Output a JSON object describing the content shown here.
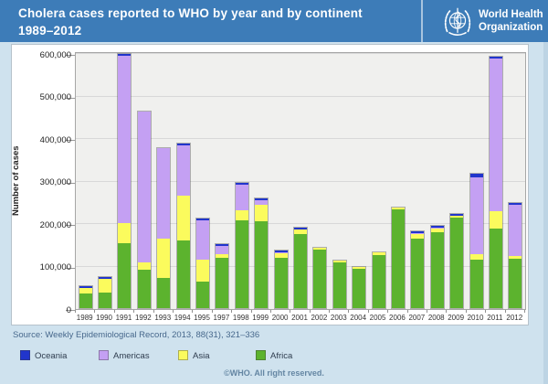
{
  "header": {
    "title_line1": "Cholera cases reported to WHO by year and by continent",
    "title_line2": "1989–2012",
    "logo_line1": "World Health",
    "logo_line2": "Organization",
    "brand_color": "#3d7cb8"
  },
  "chart_data": {
    "type": "bar",
    "stacked": true,
    "title": "Cholera cases reported to WHO by year and by continent 1989–2012",
    "ylabel": "Number of cases",
    "xlabel": "",
    "ylim": [
      0,
      600000
    ],
    "ytick_interval": 100000,
    "ytick_labels": [
      "0",
      "100,000",
      "200,000",
      "300,000",
      "400,000",
      "500,000",
      "600,000"
    ],
    "grid": true,
    "legend_position": "bottom",
    "categories": [
      "1989",
      "1990",
      "1991",
      "1992",
      "1993",
      "1994",
      "1995",
      "1997",
      "1998",
      "1999",
      "2000",
      "2001",
      "2002",
      "2003",
      "2004",
      "2005",
      "2006",
      "2007",
      "2008",
      "2009",
      "2010",
      "2011",
      "2012"
    ],
    "stack_order_bottom_to_top": [
      "Africa",
      "Asia",
      "Americas",
      "Oceania"
    ],
    "series": [
      {
        "name": "Africa",
        "color": "#5cb32e",
        "values": [
          35000,
          37000,
          153000,
          91000,
          72000,
          159000,
          63000,
          118000,
          207000,
          205000,
          118000,
          174000,
          138000,
          108000,
          93000,
          125000,
          232000,
          163000,
          179000,
          214000,
          115000,
          188000,
          117000
        ]
      },
      {
        "name": "Asia",
        "color": "#fbfb5d",
        "values": [
          12000,
          32000,
          47000,
          17000,
          92000,
          106000,
          51000,
          8000,
          24000,
          38000,
          11000,
          10000,
          4000,
          3000,
          4000,
          6000,
          5000,
          11000,
          9000,
          3000,
          13000,
          39000,
          6000
        ]
      },
      {
        "name": "Americas",
        "color": "#c4a0f3",
        "values": [
          0,
          0,
          394000,
          354000,
          212000,
          117000,
          92000,
          20000,
          60000,
          10000,
          3000,
          0,
          0,
          0,
          0,
          0,
          0,
          2000,
          1000,
          0,
          180000,
          361000,
          121000
        ]
      },
      {
        "name": "Oceania",
        "color": "#2135cc",
        "values": [
          1000,
          1000,
          2000,
          0,
          0,
          1000,
          2000,
          1000,
          2000,
          1000,
          4000,
          1000,
          0,
          0,
          0,
          0,
          0,
          1000,
          1000,
          4000,
          9000,
          2000,
          1000
        ]
      }
    ]
  },
  "legend": {
    "items": [
      {
        "label": "Oceania",
        "color": "#2135cc"
      },
      {
        "label": "Americas",
        "color": "#c4a0f3"
      },
      {
        "label": "Asia",
        "color": "#fbfb5d"
      },
      {
        "label": "Africa",
        "color": "#5cb32e"
      }
    ]
  },
  "footer": {
    "source": "Source: Weekly Epidemiological Record, 2013, 88(31), 321–336",
    "copyright": "©WHO. All right reserved."
  }
}
